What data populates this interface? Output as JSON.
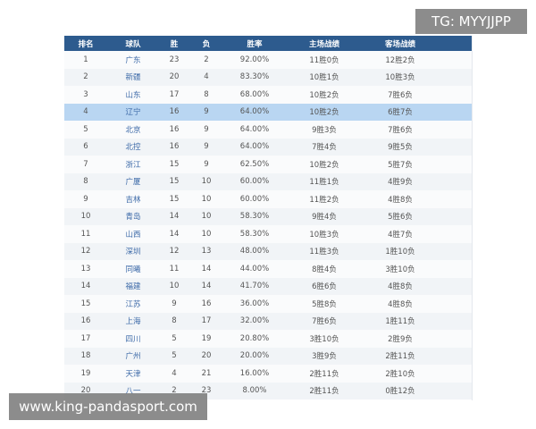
{
  "table": {
    "headers": [
      "排名",
      "球队",
      "胜",
      "负",
      "胜率",
      "主场战绩",
      "客场战绩"
    ],
    "rows": [
      [
        1,
        "广东",
        23,
        2,
        "92.00%",
        "11胜0负",
        "12胜2负"
      ],
      [
        2,
        "新疆",
        20,
        4,
        "83.30%",
        "10胜1负",
        "10胜3负"
      ],
      [
        3,
        "山东",
        17,
        8,
        "68.00%",
        "10胜2负",
        "7胜6负"
      ],
      [
        4,
        "辽宁",
        16,
        9,
        "64.00%",
        "10胜2负",
        "6胜7负"
      ],
      [
        5,
        "北京",
        16,
        9,
        "64.00%",
        "9胜3负",
        "7胜6负"
      ],
      [
        6,
        "北控",
        16,
        9,
        "64.00%",
        "7胜4负",
        "9胜5负"
      ],
      [
        7,
        "浙江",
        15,
        9,
        "62.50%",
        "10胜2负",
        "5胜7负"
      ],
      [
        8,
        "广厦",
        15,
        10,
        "60.00%",
        "11胜1负",
        "4胜9负"
      ],
      [
        9,
        "吉林",
        15,
        10,
        "60.00%",
        "11胜2负",
        "4胜8负"
      ],
      [
        10,
        "青岛",
        14,
        10,
        "58.30%",
        "9胜4负",
        "5胜6负"
      ],
      [
        11,
        "山西",
        14,
        10,
        "58.30%",
        "10胜3负",
        "4胜7负"
      ],
      [
        12,
        "深圳",
        12,
        13,
        "48.00%",
        "11胜3负",
        "1胜10负"
      ],
      [
        13,
        "同曦",
        11,
        14,
        "44.00%",
        "8胜4负",
        "3胜10负"
      ],
      [
        14,
        "福建",
        10,
        14,
        "41.70%",
        "6胜6负",
        "4胜8负"
      ],
      [
        15,
        "江苏",
        9,
        16,
        "36.00%",
        "5胜8负",
        "4胜8负"
      ],
      [
        16,
        "上海",
        8,
        17,
        "32.00%",
        "7胜6负",
        "1胜11负"
      ],
      [
        17,
        "四川",
        5,
        19,
        "20.80%",
        "3胜10负",
        "2胜9负"
      ],
      [
        18,
        "广州",
        5,
        20,
        "20.00%",
        "3胜9负",
        "2胜11负"
      ],
      [
        19,
        "天津",
        4,
        21,
        "16.00%",
        "2胜11负",
        "2胜10负"
      ],
      [
        20,
        "八一",
        2,
        23,
        "8.00%",
        "2胜11负",
        "0胜12负"
      ]
    ]
  },
  "watermarks": {
    "top": "TG: MYYJJPP",
    "bottom": "www.king-pandasport.com"
  }
}
